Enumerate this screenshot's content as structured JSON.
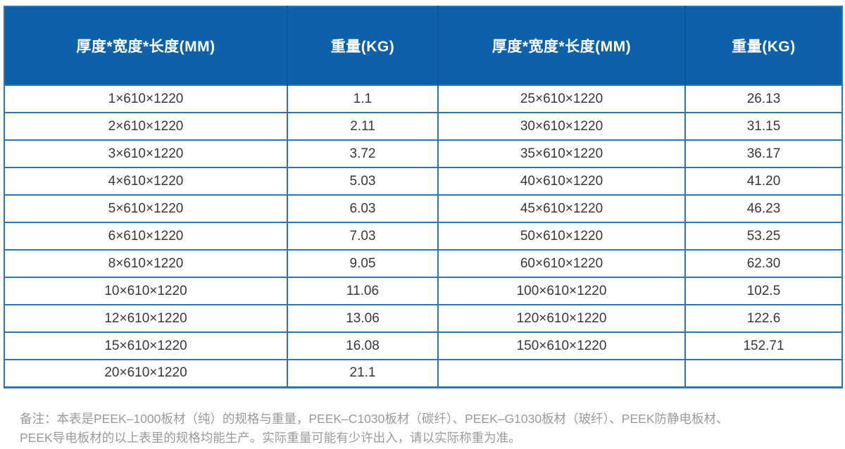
{
  "table": {
    "headers": [
      "厚度*宽度*长度(MM)",
      "重量(KG)",
      "厚度*宽度*长度(MM)",
      "重量(KG)"
    ],
    "rows": [
      [
        "1×610×1220",
        "1.1",
        "25×610×1220",
        "26.13"
      ],
      [
        "2×610×1220",
        "2.11",
        "30×610×1220",
        "31.15"
      ],
      [
        "3×610×1220",
        "3.72",
        "35×610×1220",
        "36.17"
      ],
      [
        "4×610×1220",
        "5.03",
        "40×610×1220",
        "41.20"
      ],
      [
        "5×610×1220",
        "6.03",
        "45×610×1220",
        "46.23"
      ],
      [
        "6×610×1220",
        "7.03",
        "50×610×1220",
        "53.25"
      ],
      [
        "8×610×1220",
        "9.05",
        "60×610×1220",
        "62.30"
      ],
      [
        "10×610×1220",
        "11.06",
        "100×610×1220",
        "102.5"
      ],
      [
        "12×610×1220",
        "13.06",
        "120×610×1220",
        "122.6"
      ],
      [
        "15×610×1220",
        "16.08",
        "150×610×1220",
        "152.71"
      ],
      [
        "20×610×1220",
        "21.1",
        "",
        ""
      ]
    ]
  },
  "note": {
    "line1": "备注：本表是PEEK–1000板材（纯）的规格与重量，PEEK–C1030板材（碳纤）、PEEK–G1030板材（玻纤）、PEEK防静电板材、",
    "line2": "PEEK导电板材的以上表里的规格均能生产。实际重量可能有少许出入，请以实际称重为准。"
  },
  "colors": {
    "header_bg": "#0d61a9",
    "header_divider": "#0a559c",
    "header_text": "#ffffff",
    "grid_border": "#2e74b5",
    "cell_text": "#383838",
    "note_text": "#9a9a9b"
  }
}
